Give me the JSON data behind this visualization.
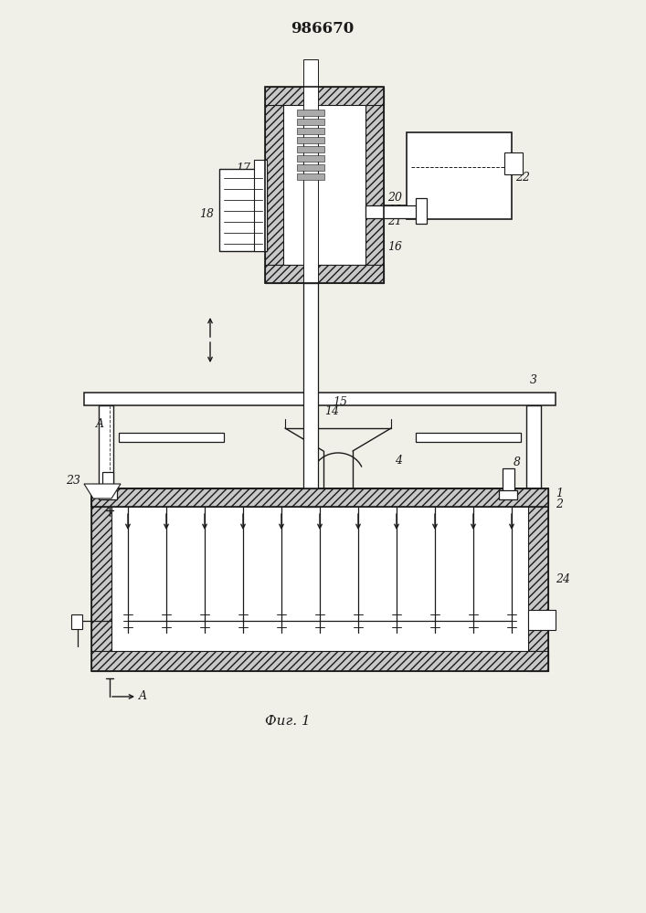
{
  "title": "986670",
  "caption": "Фиг. 1",
  "bg_color": "#f0efe8",
  "lc": "#1a1a1a",
  "figsize": [
    7.07,
    10.0
  ],
  "dpi": 100
}
